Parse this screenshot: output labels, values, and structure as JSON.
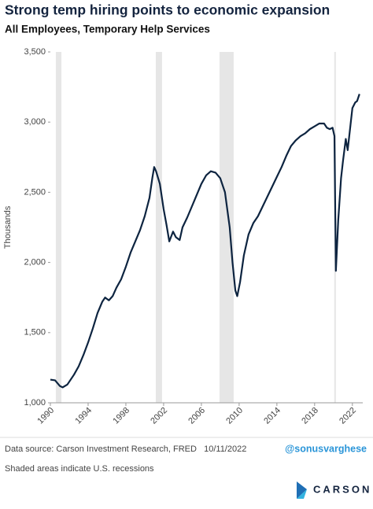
{
  "chart_data": {
    "type": "line",
    "title": "Strong temp hiring points to economic expansion",
    "subtitle": "All Employees, Temporary Help Services",
    "y_label": "Thousands",
    "source": "Data source: Carson Investment Research, FRED   10/11/2022",
    "handle": "@sonusvarghese",
    "note": "Shaded areas indicate U.S. recessions",
    "logo": "CARSON",
    "xlim": [
      1990,
      2023.1
    ],
    "xticks": [
      1990,
      1994,
      1998,
      2002,
      2006,
      2010,
      2014,
      2018,
      2022
    ],
    "ylim": [
      1000,
      3500
    ],
    "yticks": [
      {
        "value": 1000,
        "label": "1,000"
      },
      {
        "value": 1500,
        "label": "1,500"
      },
      {
        "value": 2000,
        "label": "2,000"
      },
      {
        "value": 2500,
        "label": "2,500"
      },
      {
        "value": 3000,
        "label": "3,000"
      },
      {
        "value": 3500,
        "label": "3,500"
      }
    ],
    "recessions": [
      [
        1990.58,
        1991.17
      ],
      [
        2001.17,
        2001.83
      ],
      [
        2007.92,
        2009.42
      ],
      [
        2020.08,
        2020.25
      ]
    ],
    "recession_color": "#e6e6e6",
    "x": [
      1990.0,
      1990.5,
      1991.0,
      1991.3,
      1991.8,
      1992.5,
      1993.0,
      1993.5,
      1994.0,
      1994.5,
      1995.0,
      1995.5,
      1995.8,
      1996.2,
      1996.6,
      1997.0,
      1997.5,
      1998.0,
      1998.5,
      1999.0,
      1999.5,
      2000.0,
      2000.5,
      2000.8,
      2001.0,
      2001.2,
      2001.6,
      2002.0,
      2002.3,
      2002.6,
      2003.0,
      2003.3,
      2003.7,
      2004.0,
      2004.5,
      2005.0,
      2005.5,
      2006.0,
      2006.5,
      2007.0,
      2007.5,
      2008.0,
      2008.5,
      2009.0,
      2009.3,
      2009.6,
      2009.8,
      2010.1,
      2010.5,
      2011.0,
      2011.5,
      2012.0,
      2012.5,
      2013.0,
      2013.5,
      2014.0,
      2014.5,
      2015.0,
      2015.5,
      2016.0,
      2016.5,
      2017.0,
      2017.5,
      2018.0,
      2018.5,
      2019.0,
      2019.3,
      2019.6,
      2019.9,
      2020.1,
      2020.25,
      2020.5,
      2020.8,
      2021.0,
      2021.3,
      2021.5,
      2021.8,
      2022.0,
      2022.3,
      2022.5,
      2022.75
    ],
    "series": [
      {
        "name": "All Employees, Temporary Help Services",
        "color": "#0d2440",
        "values": [
          1165,
          1160,
          1120,
          1110,
          1130,
          1200,
          1260,
          1340,
          1430,
          1530,
          1640,
          1720,
          1750,
          1730,
          1760,
          1820,
          1880,
          1970,
          2070,
          2150,
          2230,
          2330,
          2460,
          2600,
          2680,
          2650,
          2560,
          2380,
          2270,
          2150,
          2220,
          2180,
          2160,
          2250,
          2320,
          2400,
          2480,
          2560,
          2620,
          2650,
          2640,
          2600,
          2500,
          2250,
          2000,
          1800,
          1760,
          1860,
          2050,
          2200,
          2280,
          2330,
          2400,
          2470,
          2540,
          2610,
          2680,
          2760,
          2830,
          2870,
          2900,
          2920,
          2950,
          2970,
          2990,
          2990,
          2960,
          2950,
          2960,
          2900,
          1940,
          2300,
          2600,
          2720,
          2880,
          2800,
          2980,
          3100,
          3140,
          3150,
          3200
        ]
      }
    ]
  }
}
